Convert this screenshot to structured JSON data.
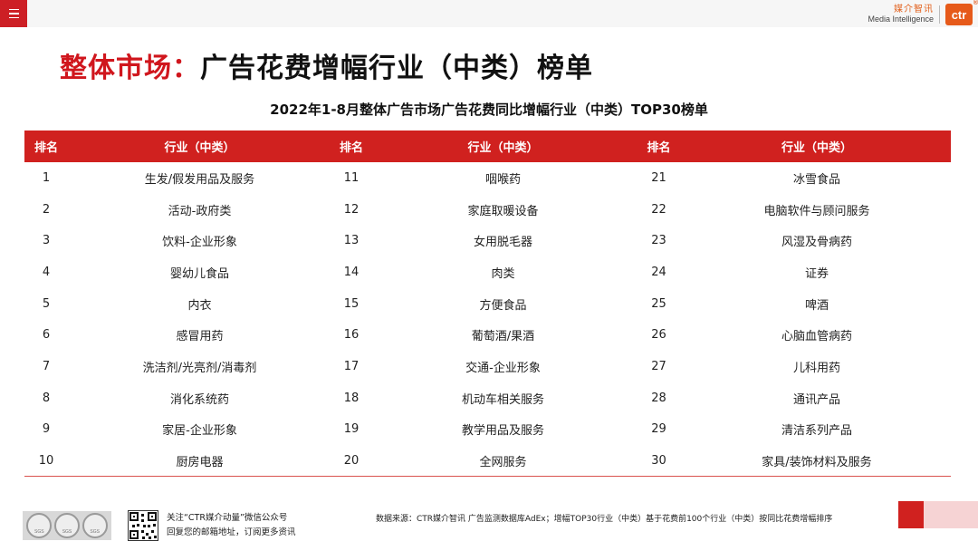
{
  "header": {
    "brand_cn": "媒介智讯",
    "brand_en": "Media Intelligence",
    "logo": "ctr",
    "logo_reg": "®"
  },
  "title": {
    "highlight": "整体市场：",
    "rest": "广告花费增幅行业（中类）榜单"
  },
  "subtitle": "2022年1-8月整体广告市场广告花费同比增幅行业（中类）TOP30榜单",
  "table": {
    "headers": [
      "排名",
      "行业（中类）",
      "排名",
      "行业（中类）",
      "排名",
      "行业（中类）"
    ],
    "rows": [
      [
        "1",
        "生发/假发用品及服务",
        "11",
        "咽喉药",
        "21",
        "冰雪食品"
      ],
      [
        "2",
        "活动-政府类",
        "12",
        "家庭取暖设备",
        "22",
        "电脑软件与顾问服务"
      ],
      [
        "3",
        "饮料-企业形象",
        "13",
        "女用脱毛器",
        "23",
        "风湿及骨病药"
      ],
      [
        "4",
        "婴幼儿食品",
        "14",
        "肉类",
        "24",
        "证券"
      ],
      [
        "5",
        "内衣",
        "15",
        "方便食品",
        "25",
        "啤酒"
      ],
      [
        "6",
        "感冒用药",
        "16",
        "葡萄酒/果酒",
        "26",
        "心脑血管病药"
      ],
      [
        "7",
        "洗洁剂/光亮剂/消毒剂",
        "17",
        "交通-企业形象",
        "27",
        "儿科用药"
      ],
      [
        "8",
        "消化系统药",
        "18",
        "机动车相关服务",
        "28",
        "通讯产品"
      ],
      [
        "9",
        "家居-企业形象",
        "19",
        "教学用品及服务",
        "29",
        "清洁系列产品"
      ],
      [
        "10",
        "厨房电器",
        "20",
        "全网服务",
        "30",
        "家具/装饰材料及服务"
      ]
    ]
  },
  "footer": {
    "cert_label": "SGS",
    "follow_line1": "关注“CTR媒介动量”微信公众号",
    "follow_line2": "回复您的邮箱地址，订阅更多资讯",
    "source": "数据来源：CTR媒介智讯 广告监测数据库AdEx；增幅TOP30行业（中类）基于花费前100个行业（中类）按同比花费增幅排序"
  },
  "colors": {
    "accent_red": "#d0211f",
    "title_red": "#d0161d",
    "brand_orange": "#e65a1a",
    "pink": "#f6d3d4"
  },
  "icons": [
    "menu-icon",
    "ctr-logo",
    "sgs-seal-icon",
    "qr-code-icon"
  ]
}
